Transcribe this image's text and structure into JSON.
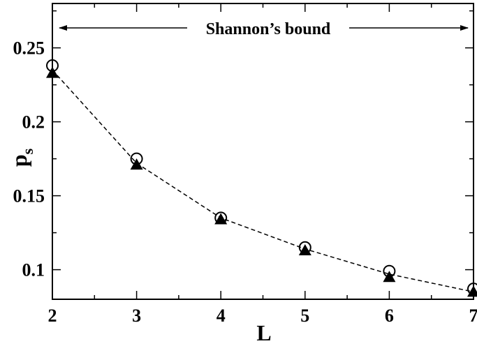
{
  "chart_data": {
    "type": "line",
    "xlabel": "L",
    "ylabel": "p",
    "ylabel_subscript": "s",
    "xlim": [
      2,
      7
    ],
    "ylim": [
      0.08,
      0.28
    ],
    "x_ticks": [
      "2",
      "3",
      "4",
      "5",
      "6",
      "7"
    ],
    "y_ticks": [
      "0.1",
      "0.15",
      "0.2",
      "0.25"
    ],
    "grid": false,
    "x": [
      2,
      3,
      4,
      5,
      6,
      7
    ],
    "series": [
      {
        "marker": "open-circle",
        "values": [
          0.238,
          0.175,
          0.135,
          0.115,
          0.099,
          0.087
        ]
      },
      {
        "marker": "filled-triangle",
        "values": [
          0.233,
          0.171,
          0.134,
          0.113,
          0.095,
          0.085
        ]
      },
      {
        "marker": "none",
        "style": "dashed",
        "values": [
          0.235,
          0.172,
          0.135,
          0.114,
          0.097,
          0.085
        ]
      }
    ],
    "annotation": {
      "text": "Shannon’s bound",
      "x_from": 2,
      "x_to": 7
    }
  },
  "colors": {
    "ink": "#000000",
    "background": "#ffffff"
  }
}
